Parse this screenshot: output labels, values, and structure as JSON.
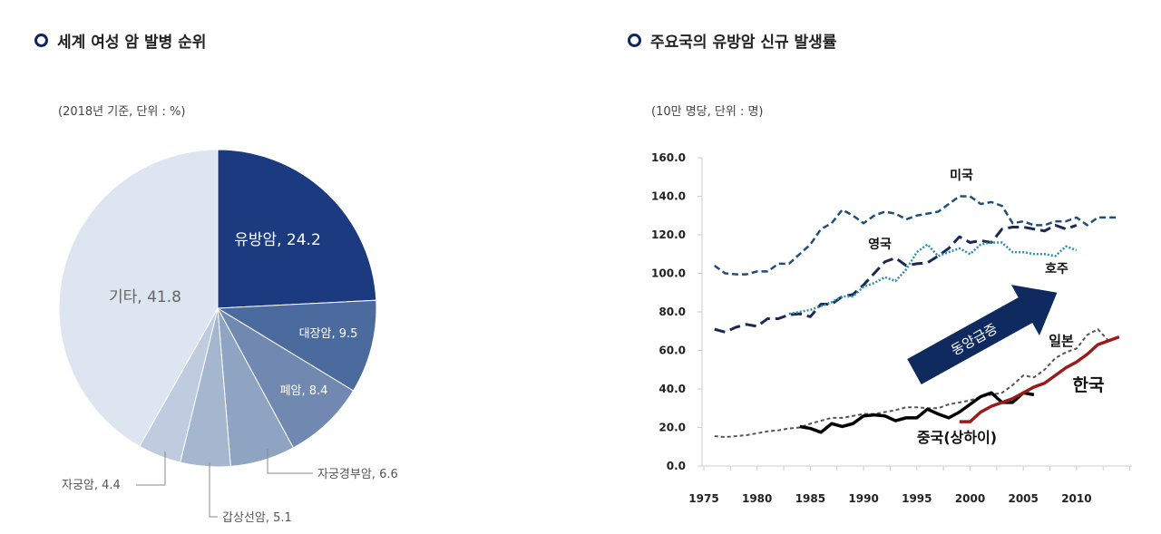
{
  "left": {
    "title": "세계 여성 암 발병 순위",
    "subtitle": "(2018년 기준, 단위 : %)"
  },
  "right": {
    "title": "주요국의 유방암 신규 발생률",
    "subtitle": "(10만 명당, 단위 : 명)",
    "arrow_label": "동양급증"
  },
  "chart_data": [
    {
      "type": "pie",
      "title": "세계 여성 암 발병 순위",
      "slices": [
        {
          "label": "유방암, 24.2",
          "name": "유방암",
          "value": 24.2,
          "color": "#1b3a80"
        },
        {
          "label": "대장암, 9.5",
          "name": "대장암",
          "value": 9.5,
          "color": "#4b6b9f"
        },
        {
          "label": "폐암, 8.4",
          "name": "폐암",
          "value": 8.4,
          "color": "#7189b1"
        },
        {
          "label": "자궁경부암, 6.6",
          "name": "자궁경부암",
          "value": 6.6,
          "color": "#8fa3c3"
        },
        {
          "label": "갑상선암, 5.1",
          "name": "갑상선암",
          "value": 5.1,
          "color": "#a5b6cf"
        },
        {
          "label": "자궁암, 4.4",
          "name": "자궁암",
          "value": 4.4,
          "color": "#bfcce0"
        },
        {
          "label": "기타, 41.8",
          "name": "기타",
          "value": 41.8,
          "color": "#dde5f0"
        }
      ]
    },
    {
      "type": "line",
      "title": "주요국의 유방암 신규 발생률",
      "xlim": [
        1975,
        2015
      ],
      "ylim": [
        0,
        160
      ],
      "xticks": [
        "1975",
        "1980",
        "1985",
        "1990",
        "1995",
        "2000",
        "2005",
        "2010"
      ],
      "yticks": [
        "0.0",
        "20.0",
        "40.0",
        "60.0",
        "80.0",
        "100.0",
        "120.0",
        "140.0",
        "160.0"
      ],
      "grid": false,
      "series": [
        {
          "name": "미국",
          "color": "#1f4e79",
          "style": "dashed",
          "x": [
            1976,
            1977,
            1978,
            1979,
            1980,
            1981,
            1982,
            1983,
            1984,
            1985,
            1986,
            1987,
            1988,
            1989,
            1990,
            1991,
            1992,
            1993,
            1994,
            1995,
            1996,
            1997,
            1998,
            1999,
            2000,
            2001,
            2002,
            2003,
            2004,
            2005,
            2006,
            2007,
            2008,
            2009,
            2010,
            2011,
            2012,
            2013,
            2014
          ],
          "y": [
            104,
            100,
            99.5,
            99.5,
            101,
            101,
            105,
            105,
            110,
            115,
            123,
            126,
            133,
            130,
            126,
            130,
            132,
            131,
            128,
            130,
            131,
            132,
            136,
            140,
            140,
            136,
            137,
            135,
            126,
            127,
            125,
            125,
            127,
            127,
            129,
            125,
            129,
            129,
            129
          ]
        },
        {
          "name": "영국",
          "color": "#1a2a55",
          "style": "longdash",
          "x": [
            1976,
            1977,
            1978,
            1979,
            1980,
            1981,
            1982,
            1983,
            1984,
            1985,
            1986,
            1987,
            1988,
            1989,
            1990,
            1991,
            1992,
            1993,
            1994,
            1995,
            1996,
            1997,
            1998,
            1999,
            2000,
            2001,
            2002,
            2003,
            2004,
            2005,
            2006,
            2007,
            2008,
            2009,
            2010
          ],
          "y": [
            71,
            69.5,
            72,
            73.5,
            72.5,
            76.5,
            76.5,
            78.5,
            79,
            77.5,
            84,
            84,
            88,
            89,
            94,
            100,
            106,
            108,
            104,
            105,
            105.5,
            109,
            113,
            119,
            116,
            117,
            116,
            123,
            124,
            124,
            123,
            122,
            125,
            123,
            125
          ]
        },
        {
          "name": "호주",
          "color": "#2a8fb0",
          "style": "dotted",
          "x": [
            1983,
            1984,
            1985,
            1986,
            1987,
            1988,
            1989,
            1990,
            1991,
            1992,
            1993,
            1994,
            1995,
            1996,
            1997,
            1998,
            1999,
            2000,
            2001,
            2002,
            2003,
            2004,
            2005,
            2006,
            2007,
            2008,
            2009,
            2010
          ],
          "y": [
            79,
            80,
            81,
            83,
            85,
            88,
            88,
            93,
            95,
            98,
            96,
            102,
            111,
            115,
            109,
            111,
            113,
            110,
            115,
            116,
            116,
            111,
            111,
            110,
            110,
            109,
            114,
            112
          ]
        },
        {
          "name": "일본",
          "color": "#555555",
          "style": "shortdash",
          "x": [
            1976,
            1977,
            1978,
            1979,
            1980,
            1981,
            1982,
            1983,
            1984,
            1985,
            1986,
            1987,
            1988,
            1989,
            1990,
            1991,
            1992,
            1993,
            1994,
            1995,
            1996,
            1997,
            1998,
            1999,
            2000,
            2001,
            2002,
            2003,
            2004,
            2005,
            2006,
            2007,
            2008,
            2009,
            2010,
            2011,
            2012,
            2013
          ],
          "y": [
            15.5,
            15,
            15.5,
            16,
            17,
            18,
            18.5,
            19.5,
            20,
            22,
            23.5,
            25,
            25,
            26,
            27,
            27,
            28,
            29,
            30.5,
            30.5,
            30,
            30,
            32,
            33,
            34,
            36,
            37,
            38,
            42,
            47,
            46,
            50,
            56,
            59,
            61,
            68,
            71,
            65
          ]
        },
        {
          "name": "중국(상하이)",
          "color": "#000000",
          "style": "solid",
          "x": [
            1984,
            1985,
            1986,
            1987,
            1988,
            1989,
            1990,
            1991,
            1992,
            1993,
            1994,
            1995,
            1996,
            1997,
            1998,
            1999,
            2000,
            2001,
            2002,
            2003,
            2004,
            2005,
            2006
          ],
          "y": [
            20.5,
            19.5,
            17.5,
            22,
            20.5,
            22,
            26,
            26.5,
            26,
            23.5,
            25,
            25,
            29.5,
            27,
            25,
            28,
            32,
            36,
            38,
            33,
            33,
            38,
            37
          ]
        },
        {
          "name": "한국",
          "color": "#9b1b1b",
          "style": "solid",
          "x": [
            1999,
            2000,
            2001,
            2002,
            2003,
            2004,
            2005,
            2006,
            2007,
            2008,
            2009,
            2010,
            2011,
            2012,
            2013,
            2014
          ],
          "y": [
            23,
            23,
            28,
            31,
            33,
            35,
            38,
            41,
            43,
            47,
            51,
            54,
            58,
            63,
            65,
            67
          ]
        }
      ]
    }
  ]
}
